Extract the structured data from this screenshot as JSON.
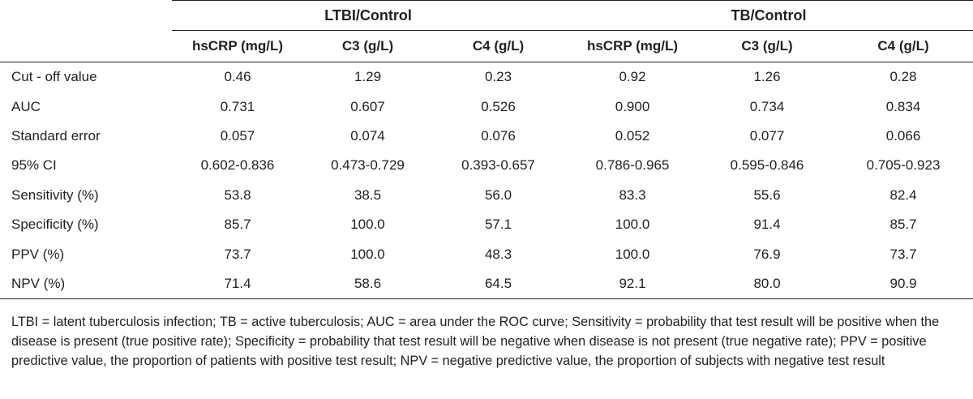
{
  "table": {
    "groups": [
      "LTBI/Control",
      "TB/Control"
    ],
    "columns": [
      "hsCRP (mg/L)",
      "C3 (g/L)",
      "C4 (g/L)",
      "hsCRP (mg/L)",
      "C3 (g/L)",
      "C4 (g/L)"
    ],
    "rows": [
      {
        "label": "Cut - off value",
        "values": [
          "0.46",
          "1.29",
          "0.23",
          "0.92",
          "1.26",
          "0.28"
        ]
      },
      {
        "label": "AUC",
        "values": [
          "0.731",
          "0.607",
          "0.526",
          "0.900",
          "0.734",
          "0.834"
        ]
      },
      {
        "label": "Standard error",
        "values": [
          "0.057",
          "0.074",
          "0.076",
          "0.052",
          "0.077",
          "0.066"
        ]
      },
      {
        "label": "95% CI",
        "values": [
          "0.602-0.836",
          "0.473-0.729",
          "0.393-0.657",
          "0.786-0.965",
          "0.595-0.846",
          "0.705-0.923"
        ]
      },
      {
        "label": "Sensitivity (%)",
        "values": [
          "53.8",
          "38.5",
          "56.0",
          "83.3",
          "55.6",
          "82.4"
        ]
      },
      {
        "label": "Specificity (%)",
        "values": [
          "85.7",
          "100.0",
          "57.1",
          "100.0",
          "91.4",
          "85.7"
        ]
      },
      {
        "label": "PPV (%)",
        "values": [
          "73.7",
          "100.0",
          "48.3",
          "100.0",
          "76.9",
          "73.7"
        ]
      },
      {
        "label": "NPV (%)",
        "values": [
          "71.4",
          "58.6",
          "64.5",
          "92.1",
          "80.0",
          "90.9"
        ]
      }
    ]
  },
  "footnote": "LTBI = latent tuberculosis infection; TB = active tuberculosis; AUC = area under the ROC curve; Sensitivity = probability that test result will be positive when the disease is present (true positive rate); Specificity = probability that test result will be negative when disease is not present (true negative rate); PPV = positive predictive value, the proportion of patients with positive test result; NPV = negative predictive value, the proportion of subjects with negative test result"
}
